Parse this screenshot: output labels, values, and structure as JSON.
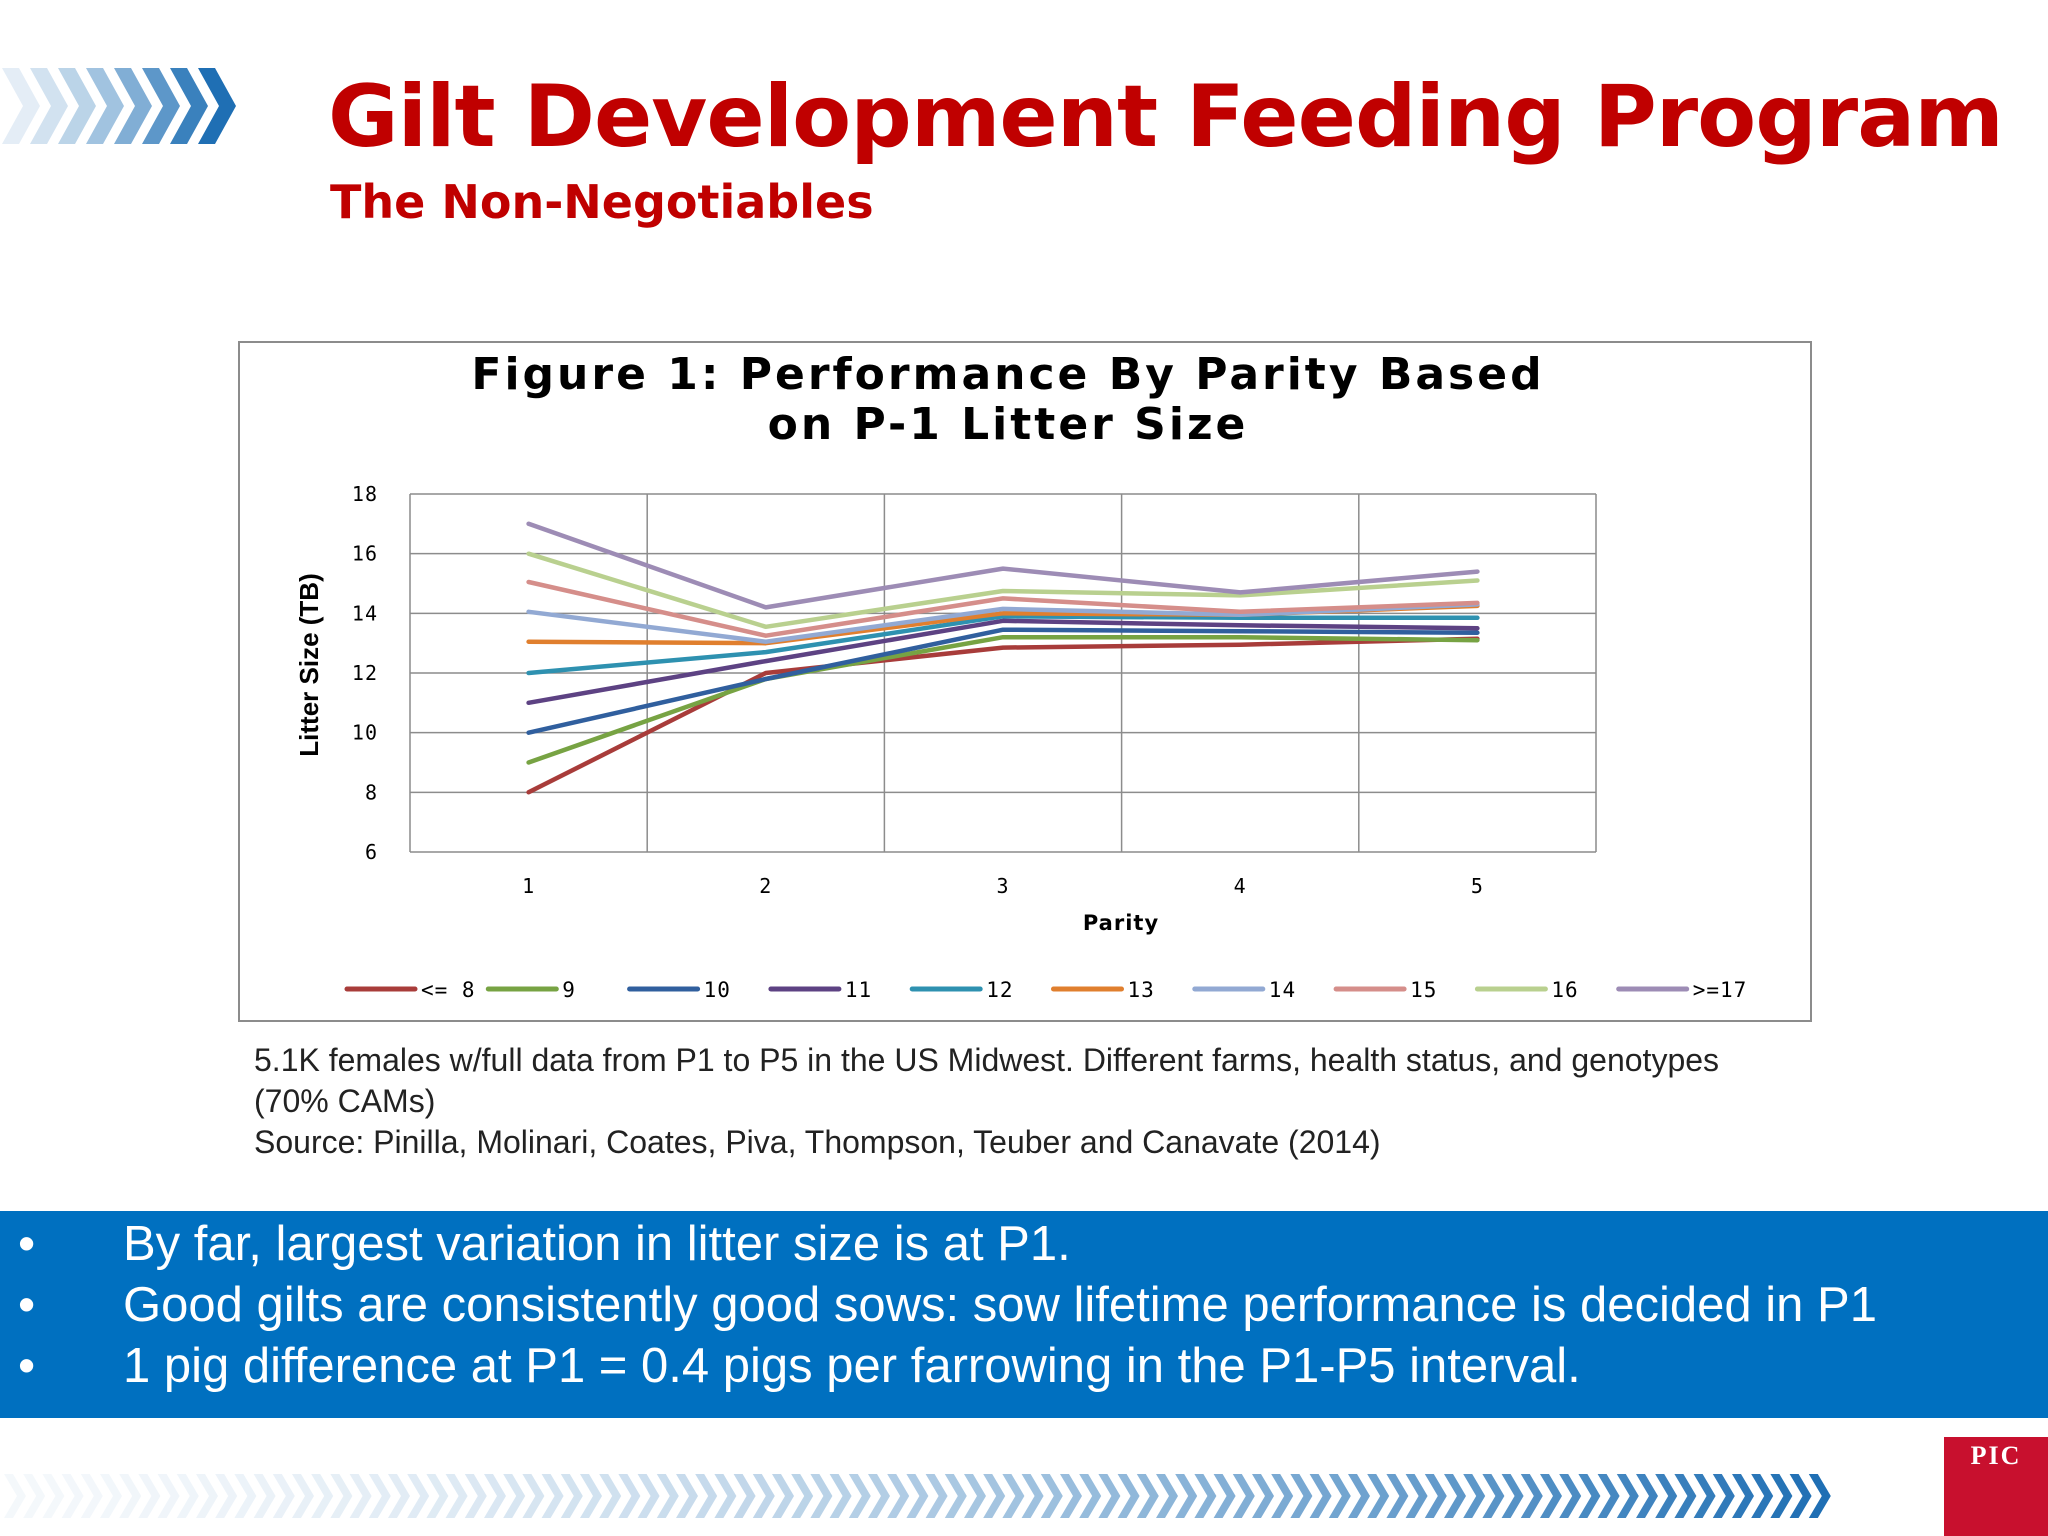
{
  "slide": {
    "title": "Gilt Development Feeding Program",
    "subtitle": "The Non-Negotiables",
    "colors": {
      "title": "#c00000",
      "band": "#0070c0",
      "chevron": "#1f6fb4",
      "logo": "#c8102e"
    }
  },
  "chart_data": {
    "type": "line",
    "title_lines": [
      "Figure 1: Performance By Parity Based",
      "on P-1 Litter Size"
    ],
    "xlabel": "Parity",
    "ylabel": "Litter Size (TB)",
    "x": [
      1,
      2,
      3,
      4,
      5
    ],
    "x_tick_labels": [
      "1",
      "2",
      "3",
      "4",
      "5"
    ],
    "y_ticks": [
      "6",
      "8",
      "10",
      "12",
      "14",
      "16",
      "18"
    ],
    "ylim": [
      6,
      18
    ],
    "grid": true,
    "legend_position": "bottom",
    "series": [
      {
        "name": "<= 8",
        "color": "#a83c3a",
        "values": [
          8.0,
          12.0,
          12.85,
          12.95,
          13.15
        ]
      },
      {
        "name": "9",
        "color": "#77a343",
        "values": [
          9.0,
          11.8,
          13.2,
          13.2,
          13.1
        ]
      },
      {
        "name": "10",
        "color": "#305f9e",
        "values": [
          10.0,
          11.8,
          13.45,
          13.4,
          13.35
        ]
      },
      {
        "name": "11",
        "color": "#5d4283",
        "values": [
          11.0,
          12.4,
          13.75,
          13.6,
          13.5
        ]
      },
      {
        "name": "12",
        "color": "#2e91b0",
        "values": [
          12.0,
          12.7,
          13.9,
          13.85,
          13.85
        ]
      },
      {
        "name": "13",
        "color": "#e07f2e",
        "values": [
          13.05,
          13.0,
          14.0,
          13.95,
          14.25
        ]
      },
      {
        "name": "14",
        "color": "#92a9d3",
        "values": [
          14.05,
          13.05,
          14.15,
          13.95,
          14.3
        ]
      },
      {
        "name": "15",
        "color": "#d58e8a",
        "values": [
          15.05,
          13.25,
          14.5,
          14.05,
          14.35
        ]
      },
      {
        "name": "16",
        "color": "#b9d08f",
        "values": [
          16.0,
          13.55,
          14.75,
          14.6,
          15.1
        ]
      },
      {
        "name": ">=17",
        "color": "#9d8cb5",
        "values": [
          17.0,
          14.2,
          15.5,
          14.7,
          15.4
        ]
      }
    ]
  },
  "caption": {
    "lines": [
      "5.1K females w/full data from P1 to P5  in the  US Midwest. Different farms, health status, and  genotypes",
      "(70% CAMs)",
      "Source: Pinilla,  Molinari, Coates, Piva,  Thompson,  Teuber and Canavate (2014)"
    ]
  },
  "bullets": {
    "marker": "•",
    "items": [
      "By far, largest variation in litter size is at P1.",
      "Good gilts are consistently good sows: sow lifetime performance is decided in P1",
      "1 pig difference at P1 = 0.4 pigs per farrowing in the P1-P5 interval."
    ]
  },
  "logo": {
    "text": "PIC"
  }
}
